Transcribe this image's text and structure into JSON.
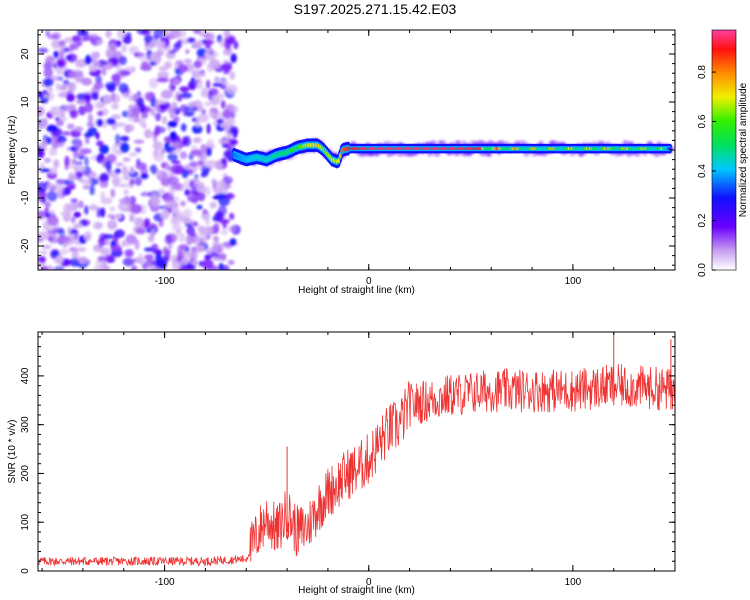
{
  "figure_title": "S197.2025.271.15.42.E03",
  "chart_data": [
    {
      "type": "heatmap",
      "title": "",
      "xlabel": "Height of straight line (km)",
      "ylabel": "Frequency (Hz)",
      "xlim": [
        -162,
        150
      ],
      "ylim": [
        -25,
        25
      ],
      "xticks": [
        -100,
        0,
        100
      ],
      "yticks": [
        -20,
        -10,
        0,
        10,
        20
      ],
      "colorbar": {
        "label": "Normalized spectral amplitude",
        "range": [
          0.0,
          0.97
        ],
        "ticks": [
          0.0,
          0.2,
          0.4,
          0.6,
          0.8
        ],
        "colormap": "rainbow (white-purple-blue-cyan-green-yellow-orange-red-pink)"
      },
      "noise_region": {
        "x": [
          -162,
          -65
        ],
        "freq": [
          -25,
          25
        ],
        "amplitude": [
          0.0,
          0.25
        ]
      },
      "signal_track": {
        "x": [
          -66,
          -60,
          -55,
          -50,
          -45,
          -40,
          -35,
          -30,
          -25,
          -22,
          -18,
          -15,
          -13,
          -10,
          0,
          20,
          40,
          60,
          80,
          100,
          120,
          140,
          148
        ],
        "freq": [
          -1,
          -2,
          -1.5,
          -2,
          -1,
          -0.5,
          0.5,
          1,
          1,
          0,
          -2,
          -2.5,
          0,
          0.3,
          0.3,
          0.3,
          0.3,
          0.3,
          0.3,
          0.3,
          0.3,
          0.3,
          0.3
        ],
        "amplitude": [
          0.35,
          0.4,
          0.45,
          0.45,
          0.5,
          0.55,
          0.6,
          0.7,
          0.75,
          0.65,
          0.7,
          0.7,
          0.85,
          0.9,
          0.95,
          0.95,
          0.95,
          0.9,
          0.8,
          0.8,
          0.85,
          0.8,
          0.6
        ]
      }
    },
    {
      "type": "line",
      "title": "",
      "xlabel": "Height of straight line (km)",
      "ylabel": "SNR (10 * v/v)",
      "xlim": [
        -162,
        150
      ],
      "ylim": [
        0,
        490
      ],
      "xticks": [
        -100,
        0,
        100
      ],
      "yticks": [
        0,
        100,
        200,
        300,
        400
      ],
      "series": [
        {
          "name": "SNR",
          "color": "#ee3333",
          "x": [
            -162,
            -120,
            -80,
            -60,
            -55,
            -50,
            -45,
            -40,
            -35,
            -30,
            -25,
            -20,
            -15,
            -10,
            -5,
            0,
            5,
            10,
            15,
            20,
            30,
            40,
            60,
            80,
            100,
            120,
            140,
            150
          ],
          "values": [
            20,
            20,
            20,
            25,
            70,
            110,
            80,
            120,
            80,
            90,
            130,
            160,
            180,
            200,
            210,
            230,
            260,
            290,
            300,
            340,
            350,
            360,
            370,
            370,
            370,
            380,
            375,
            370
          ]
        }
      ],
      "spikes": {
        "x": [
          -40,
          120,
          148
        ],
        "values": [
          255,
          490,
          475
        ]
      }
    }
  ]
}
